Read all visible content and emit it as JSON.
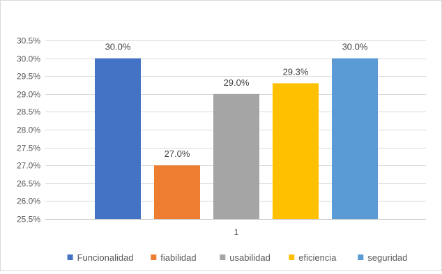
{
  "chart_data": {
    "type": "bar",
    "categories": [
      "1"
    ],
    "series": [
      {
        "name": "Funcionalidad",
        "values": [
          30.0
        ],
        "color": "#4472C4"
      },
      {
        "name": "fiabilidad",
        "values": [
          27.0
        ],
        "color": "#ED7D31"
      },
      {
        "name": "usabilidad",
        "values": [
          29.0
        ],
        "color": "#A5A5A5"
      },
      {
        "name": "eficiencia",
        "values": [
          29.3
        ],
        "color": "#FFC000"
      },
      {
        "name": "seguridad",
        "values": [
          30.0
        ],
        "color": "#5B9BD5"
      }
    ],
    "data_labels": [
      "30.0%",
      "27.0%",
      "29.0%",
      "29.3%",
      "30.0%"
    ],
    "ylim": [
      25.5,
      30.5
    ],
    "y_ticks": [
      25.5,
      26.0,
      26.5,
      27.0,
      27.5,
      28.0,
      28.5,
      29.0,
      29.5,
      30.0,
      30.5
    ],
    "y_tick_labels": [
      "25.5%",
      "26.0%",
      "26.5%",
      "27.0%",
      "27.5%",
      "28.0%",
      "28.5%",
      "29.0%",
      "29.5%",
      "30.0%",
      "30.5%"
    ],
    "grid": true,
    "legend_position": "bottom",
    "title": "",
    "xlabel": "",
    "ylabel": ""
  }
}
